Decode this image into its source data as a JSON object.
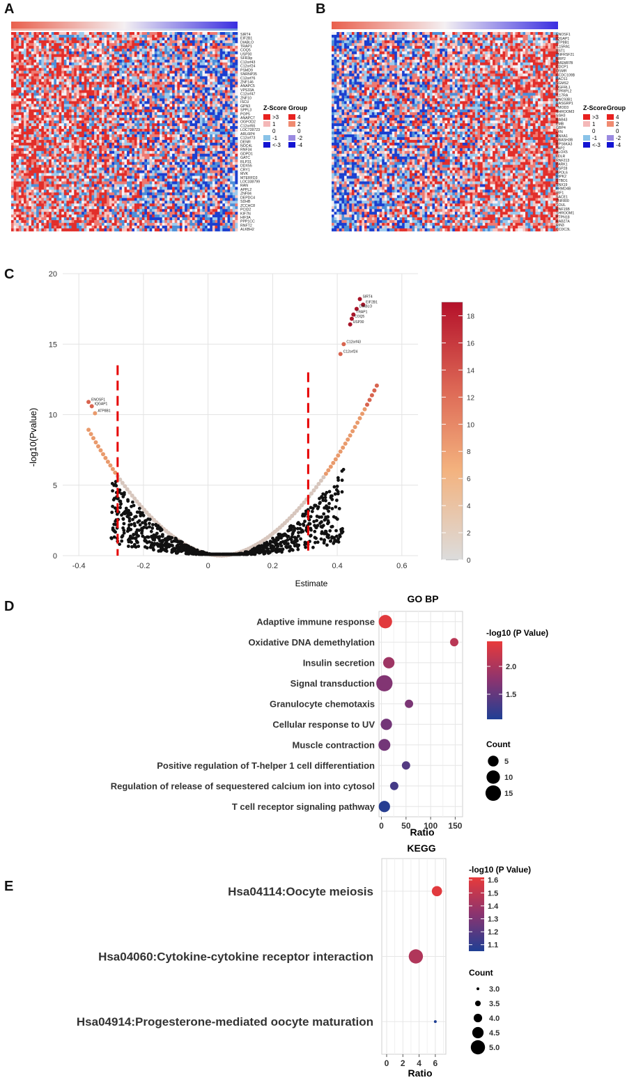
{
  "panels": {
    "A": "A",
    "B": "B",
    "C": "C",
    "D": "D",
    "E": "E"
  },
  "legend_text": {
    "zscore_title": "Z-Score",
    "group_title": "Group",
    "zscore_labels": [
      ">3",
      "1",
      "0",
      "-1",
      "<-3"
    ],
    "group_labels": [
      "4",
      "2",
      "0",
      "-2",
      "-4"
    ]
  },
  "colors": {
    "hm_red": "#e8413c",
    "hm_blue": "#2f66c8",
    "dark_blue": "#1414d2",
    "light_blue": "#8ac3e8",
    "pink": "#f4b8b8",
    "orange_dash": "#e60000"
  },
  "heatmap_A": {
    "genes": [
      "SIRT4",
      "EIF2B1",
      "DIABLO",
      "TRAP1",
      "COQ5",
      "USP30",
      "SFR3ip",
      "C12orf43",
      "C12orf24",
      "PSMD9",
      "SNRNP35",
      "C12orf76",
      "ZNF146",
      "ANAPC5",
      "VPS33A",
      "C12orf47",
      "ZNF10",
      "ISCU",
      "GPN3",
      "SPPL3",
      "POP5",
      "ANAPC7",
      "OGFOD2",
      "C12orf65",
      "LOC728723",
      "ARL6IP4",
      "C12orf73",
      "DENR",
      "NOC4L",
      "RNF34",
      "GDPD1",
      "GATC",
      "RLP31",
      "DDX55",
      "CRY1",
      "MVK",
      "MTERFD3",
      "LOC338799",
      "RAN",
      "APPL2",
      "ZNF84",
      "DEPDC4",
      "SDHB",
      "ZCCHC8",
      "PCID2",
      "KIF7N",
      "HIF3A",
      "PPP1CC",
      "RNFT2",
      "ALKBH2"
    ]
  },
  "heatmap_B": {
    "genes": [
      "ENOSF1",
      "IQGAP1",
      "ATP8B1",
      "IL15RA1",
      "BST1",
      "TNFRSF21",
      "NRP2",
      "TMEM87B",
      "CDCP1",
      "OSMR",
      "CCDC109B",
      "PACS1",
      "SGMS2",
      "OGFRL1",
      "ITPRIPL2",
      "IL17RA",
      "UNC93B1",
      "RASGRP1",
      "TMOD3",
      "SHROOM3",
      "SSH3",
      "RAB43",
      "EMB",
      "GBP4",
      "LYN",
      "ANXA1",
      "UBASH3B",
      "RPS6KA3",
      "TAP2",
      "ALOX5",
      "LDLR",
      "RNF213",
      "PARK1",
      "USP28",
      "APOL6",
      "RIPK2",
      "STBD1",
      "SNX19",
      "FRMD4B",
      "IRF1",
      "SACE1",
      "ZNF800",
      "SOUL",
      "RNF15B",
      "SHROOM1",
      "PTPN18",
      "RAB27A",
      "RIN3",
      "CCDC3L"
    ]
  },
  "volcano": {
    "ylabel": "-log10(Pvalue)",
    "xlabel": "Estimate",
    "xticks": [
      "-0.4",
      "-0.2",
      "0",
      "0.2",
      "0.4",
      "0.6"
    ],
    "yticks": [
      "0",
      "5",
      "10",
      "15",
      "20"
    ],
    "colorbar_ticks": [
      "0",
      "2",
      "4",
      "6",
      "8",
      "10",
      "12",
      "14",
      "16",
      "18"
    ]
  },
  "chart_data": [
    {
      "type": "scatter",
      "title": "",
      "xlabel": "Estimate",
      "ylabel": "-log10(Pvalue)",
      "xlim": [
        -0.45,
        0.65
      ],
      "ylim": [
        0,
        20
      ],
      "thresholds_x": [
        -0.28,
        0.31
      ],
      "labeled_points": [
        {
          "label": "SIRT4",
          "x": 0.47,
          "y": 18.2
        },
        {
          "label": "EIF2B1",
          "x": 0.48,
          "y": 17.8
        },
        {
          "label": "DIABLO",
          "x": 0.46,
          "y": 17.5
        },
        {
          "label": "TRAP1",
          "x": 0.45,
          "y": 17.1
        },
        {
          "label": "COQ5",
          "x": 0.445,
          "y": 16.8
        },
        {
          "label": "USP30",
          "x": 0.44,
          "y": 16.4
        },
        {
          "label": "C12orf43",
          "x": 0.42,
          "y": 15.0
        },
        {
          "label": "C12orf24",
          "x": 0.41,
          "y": 14.3
        },
        {
          "label": "ENOSF1",
          "x": -0.37,
          "y": 10.9
        },
        {
          "label": "IQGAP1",
          "x": -0.36,
          "y": 10.6
        },
        {
          "label": "ATP8B1",
          "x": -0.35,
          "y": 10.1
        }
      ],
      "colorbar": {
        "label": "-log10(Pvalue)",
        "range": [
          0,
          19
        ]
      }
    },
    {
      "type": "scatter",
      "title": "GO BP",
      "xlabel": "Ratio",
      "ylabel": "",
      "xlim": [
        -5,
        165
      ],
      "xticks": [
        0,
        50,
        100,
        150
      ],
      "categories": [
        "Adaptive immune response",
        "Oxidative DNA demethylation",
        "Insulin secretion",
        "Signal transduction",
        "Granulocyte chemotaxis",
        "Cellular response to UV",
        "Muscle contraction",
        "Positive regulation of T-helper 1 cell differentiation",
        "Regulation of release of sequestered calcium ion into cytosol",
        "T cell receptor signaling pathway"
      ],
      "ratio": [
        8,
        148,
        15,
        6,
        56,
        10,
        6,
        50,
        26,
        6
      ],
      "count": [
        10,
        2,
        6,
        17,
        2,
        6,
        7,
        2,
        2,
        6
      ],
      "neglog10p": [
        2.4,
        2.1,
        1.9,
        1.7,
        1.65,
        1.6,
        1.6,
        1.4,
        1.3,
        1.1
      ],
      "color_legend": {
        "title": "-log10 (P Value)",
        "ticks": [
          "2.0",
          "1.5"
        ],
        "range": [
          1.05,
          2.45
        ]
      },
      "size_legend": {
        "title": "Count",
        "ticks": [
          "5",
          "10",
          "15"
        ]
      }
    },
    {
      "type": "scatter",
      "title": "KEGG",
      "xlabel": "Ratio",
      "ylabel": "",
      "xlim": [
        -0.6,
        7.3
      ],
      "xticks": [
        0,
        2,
        4,
        6
      ],
      "categories": [
        "Hsa04114:Oocyte meiosis",
        "Hsa04060:Cytokine-cytokine receptor interaction",
        "Hsa04914:Progesterone-mediated oocyte maturation"
      ],
      "ratio": [
        6.2,
        3.6,
        6.0
      ],
      "count": [
        4.3,
        5.0,
        3.0
      ],
      "neglog10p": [
        1.6,
        1.45,
        1.05
      ],
      "color_legend": {
        "title": "-log10 (P Value)",
        "ticks": [
          "1.6",
          "1.5",
          "1.4",
          "1.3",
          "1.2",
          "1.1"
        ],
        "range": [
          1.05,
          1.62
        ]
      },
      "size_legend": {
        "title": "Count",
        "ticks": [
          "3.0",
          "3.5",
          "4.0",
          "4.5",
          "5.0"
        ]
      }
    }
  ]
}
